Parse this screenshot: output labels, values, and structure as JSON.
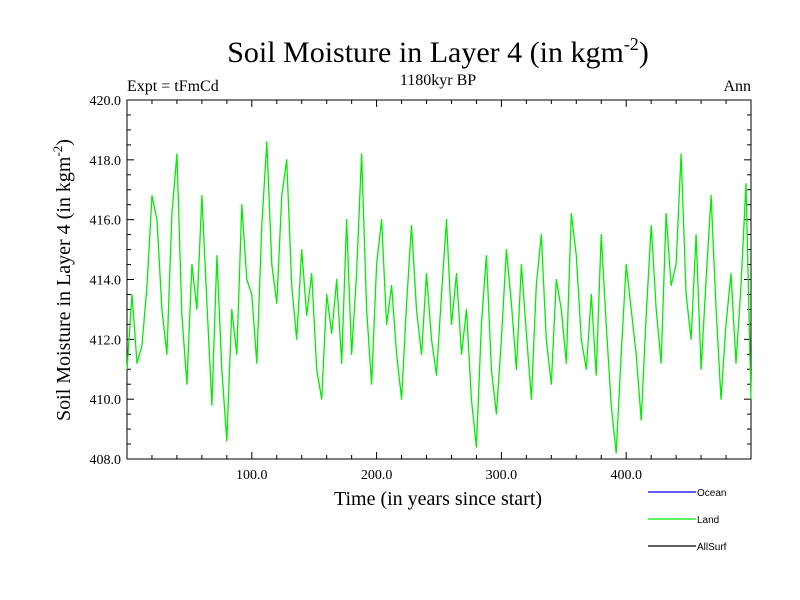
{
  "chart_data": {
    "type": "line",
    "title_main": "Soil Moisture in Layer 4 (in kgm",
    "title_sup": "-2",
    "title_close": ")",
    "experiment": "Expt = tFmCd",
    "period": "1180kyr BP",
    "season": "Ann",
    "xlabel": "Time (in years since start)",
    "ylabel_main": "Soil Moisture in Layer 4 (in kgm",
    "ylabel_sup": "-2",
    "ylabel_close": ")",
    "xlim": [
      0,
      500
    ],
    "ylim": [
      408,
      420
    ],
    "x_ticks": [
      100,
      200,
      300,
      400
    ],
    "x_tick_labels": [
      "100.0",
      "200.0",
      "300.0",
      "400.0"
    ],
    "y_ticks": [
      408,
      410,
      412,
      414,
      416,
      418,
      420
    ],
    "y_tick_labels": [
      "408.0",
      "410.0",
      "412.0",
      "414.0",
      "416.0",
      "418.0",
      "420.0"
    ],
    "legend": [
      {
        "name": "Ocean",
        "color": "#0000ff"
      },
      {
        "name": "Land",
        "color": "#00ee00"
      },
      {
        "name": "AllSurf",
        "color": "#000000"
      }
    ],
    "series": [
      {
        "name": "Land",
        "color": "#00ee00",
        "x": [
          0,
          4,
          8,
          12,
          16,
          20,
          24,
          28,
          32,
          36,
          40,
          44,
          48,
          52,
          56,
          60,
          64,
          68,
          72,
          76,
          80,
          84,
          88,
          92,
          96,
          100,
          104,
          108,
          112,
          116,
          120,
          124,
          128,
          132,
          136,
          140,
          144,
          148,
          152,
          156,
          160,
          164,
          168,
          172,
          176,
          180,
          184,
          188,
          192,
          196,
          200,
          204,
          208,
          212,
          216,
          220,
          224,
          228,
          232,
          236,
          240,
          244,
          248,
          252,
          256,
          260,
          264,
          268,
          272,
          276,
          280,
          284,
          288,
          292,
          296,
          300,
          304,
          308,
          312,
          316,
          320,
          324,
          328,
          332,
          336,
          340,
          344,
          348,
          352,
          356,
          360,
          364,
          368,
          372,
          376,
          380,
          384,
          388,
          392,
          396,
          400,
          404,
          408,
          412,
          416,
          420,
          424,
          428,
          432,
          436,
          440,
          444,
          448,
          452,
          456,
          460,
          464,
          468,
          472,
          476,
          480,
          484,
          488,
          492,
          496,
          500
        ],
        "y": [
          411.0,
          413.5,
          411.2,
          411.8,
          413.8,
          416.8,
          416.0,
          413.0,
          411.5,
          416.2,
          418.2,
          412.8,
          410.5,
          414.5,
          413.0,
          416.8,
          413.2,
          409.8,
          414.8,
          411.0,
          408.6,
          413.0,
          411.5,
          416.5,
          414.0,
          413.5,
          411.2,
          415.8,
          418.6,
          414.5,
          413.2,
          416.8,
          418.0,
          413.8,
          412.0,
          415.0,
          412.8,
          414.2,
          411.0,
          410.0,
          413.5,
          412.2,
          414.0,
          411.2,
          416.0,
          411.5,
          414.2,
          418.2,
          413.0,
          410.5,
          414.5,
          416.0,
          412.5,
          413.8,
          411.5,
          410.0,
          413.2,
          415.8,
          413.0,
          411.5,
          414.2,
          412.0,
          410.8,
          413.5,
          416.0,
          412.5,
          414.2,
          411.5,
          413.0,
          410.0,
          408.4,
          412.5,
          414.8,
          411.0,
          409.5,
          412.0,
          415.0,
          413.2,
          411.0,
          414.5,
          412.2,
          410.0,
          413.8,
          415.5,
          412.0,
          410.5,
          414.0,
          413.0,
          411.2,
          416.2,
          414.8,
          412.0,
          411.0,
          413.5,
          410.8,
          415.5,
          412.5,
          409.8,
          408.2,
          411.5,
          414.5,
          413.0,
          411.5,
          409.3,
          412.8,
          415.8,
          413.0,
          411.2,
          416.2,
          413.8,
          414.5,
          418.2,
          413.5,
          412.0,
          415.5,
          411.0,
          414.0,
          416.8,
          413.0,
          410.0,
          412.5,
          414.2,
          411.2,
          413.8,
          417.2,
          410.0
        ]
      }
    ]
  }
}
